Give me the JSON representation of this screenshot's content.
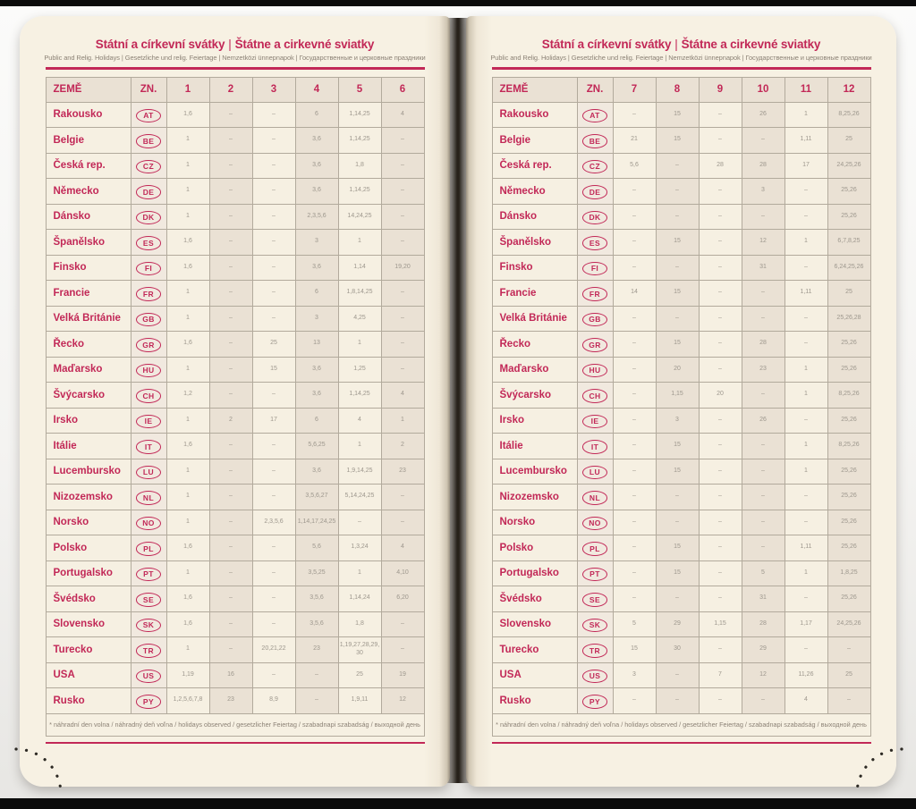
{
  "book": {
    "title_cs": "Státní a církevní svátky",
    "title_divider": "|",
    "title_sk": "Štátne a cirkevné sviatky",
    "subtitle": "Public and Relig. Holidays | Gesetzliche und relig. Feiertage | Nemzetközi ünnepnapok | Государственные и церковные праздники",
    "footnote": "* náhradní den volna / náhradný deň voľna / holidays observed / gesetzlicher Feiertag / szabadnapi szabadság / выходной день",
    "colors": {
      "accent": "#c22857",
      "page_background": "#f7f1e3",
      "shaded_cell": "#eae1d4",
      "value_text": "#9d978d"
    }
  },
  "left_page": {
    "header": [
      "ZEMĚ",
      "ZN.",
      "1",
      "2",
      "3",
      "4",
      "5",
      "6"
    ],
    "rows": [
      {
        "country": "Rakousko",
        "code": "AT",
        "values": [
          "1, 6",
          "–",
          "–",
          "6",
          "1, 14, 25",
          "4"
        ]
      },
      {
        "country": "Belgie",
        "code": "BE",
        "values": [
          "1",
          "–",
          "–",
          "3, 6",
          "1, 14, 25",
          "–"
        ]
      },
      {
        "country": "Česká rep.",
        "code": "CZ",
        "values": [
          "1",
          "–",
          "–",
          "3, 6",
          "1, 8",
          "–"
        ]
      },
      {
        "country": "Německo",
        "code": "DE",
        "values": [
          "1",
          "–",
          "–",
          "3, 6",
          "1, 14, 25",
          "–"
        ]
      },
      {
        "country": "Dánsko",
        "code": "DK",
        "values": [
          "1",
          "–",
          "–",
          "2, 3, 5, 6",
          "14, 24, 25",
          "–"
        ]
      },
      {
        "country": "Španělsko",
        "code": "ES",
        "values": [
          "1, 6",
          "–",
          "–",
          "3",
          "1",
          "–"
        ]
      },
      {
        "country": "Finsko",
        "code": "FI",
        "values": [
          "1, 6",
          "–",
          "–",
          "3, 6",
          "1, 14",
          "19, 20"
        ]
      },
      {
        "country": "Francie",
        "code": "FR",
        "values": [
          "1",
          "–",
          "–",
          "6",
          "1, 8, 14, 25",
          "–"
        ]
      },
      {
        "country": "Velká Británie",
        "code": "GB",
        "values": [
          "1",
          "–",
          "–",
          "3",
          "4, 25",
          "–"
        ]
      },
      {
        "country": "Řecko",
        "code": "GR",
        "values": [
          "1, 6",
          "–",
          "25",
          "13",
          "1",
          "–"
        ]
      },
      {
        "country": "Maďarsko",
        "code": "HU",
        "values": [
          "1",
          "–",
          "15",
          "3, 6",
          "1, 25",
          "–"
        ]
      },
      {
        "country": "Švýcarsko",
        "code": "CH",
        "values": [
          "1, 2",
          "–",
          "–",
          "3, 6",
          "1, 14, 25",
          "4"
        ]
      },
      {
        "country": "Irsko",
        "code": "IE",
        "values": [
          "1",
          "2",
          "17",
          "6",
          "4",
          "1"
        ]
      },
      {
        "country": "Itálie",
        "code": "IT",
        "values": [
          "1, 6",
          "–",
          "–",
          "5, 6, 25",
          "1",
          "2"
        ]
      },
      {
        "country": "Lucembursko",
        "code": "LU",
        "values": [
          "1",
          "–",
          "–",
          "3, 6",
          "1, 9, 14, 25",
          "23"
        ]
      },
      {
        "country": "Nizozemsko",
        "code": "NL",
        "values": [
          "1",
          "–",
          "–",
          "3, 5, 6, 27",
          "5, 14, 24, 25",
          "–"
        ]
      },
      {
        "country": "Norsko",
        "code": "NO",
        "values": [
          "1",
          "–",
          "2, 3, 5, 6",
          "1, 14, 17, 24, 25",
          "–",
          "–"
        ]
      },
      {
        "country": "Polsko",
        "code": "PL",
        "values": [
          "1, 6",
          "–",
          "–",
          "5, 6",
          "1, 3, 24",
          "4"
        ]
      },
      {
        "country": "Portugalsko",
        "code": "PT",
        "values": [
          "1",
          "–",
          "–",
          "3, 5, 25",
          "1",
          "4, 10"
        ]
      },
      {
        "country": "Švédsko",
        "code": "SE",
        "values": [
          "1, 6",
          "–",
          "–",
          "3, 5, 6",
          "1, 14, 24",
          "6, 20"
        ]
      },
      {
        "country": "Slovensko",
        "code": "SK",
        "values": [
          "1, 6",
          "–",
          "–",
          "3, 5, 6",
          "1, 8",
          "–"
        ]
      },
      {
        "country": "Turecko",
        "code": "TR",
        "values": [
          "1",
          "–",
          "20, 21, 22",
          "23",
          "1, 19, 27, 28, 29, 30",
          "–"
        ]
      },
      {
        "country": "USA",
        "code": "US",
        "values": [
          "1, 19",
          "16",
          "–",
          "–",
          "25",
          "19"
        ]
      },
      {
        "country": "Rusko",
        "code": "PY",
        "values": [
          "1, 2, 5, 6, 7, 8",
          "23",
          "8, 9",
          "–",
          "1, 9, 11",
          "12"
        ]
      }
    ]
  },
  "right_page": {
    "header": [
      "ZEMĚ",
      "ZN.",
      "7",
      "8",
      "9",
      "10",
      "11",
      "12"
    ],
    "rows": [
      {
        "country": "Rakousko",
        "code": "AT",
        "values": [
          "–",
          "15",
          "–",
          "26",
          "1",
          "8, 25, 26"
        ]
      },
      {
        "country": "Belgie",
        "code": "BE",
        "values": [
          "21",
          "15",
          "–",
          "–",
          "1, 11",
          "25"
        ]
      },
      {
        "country": "Česká rep.",
        "code": "CZ",
        "values": [
          "5, 6",
          "–",
          "28",
          "28",
          "17",
          "24, 25, 26"
        ]
      },
      {
        "country": "Německo",
        "code": "DE",
        "values": [
          "–",
          "–",
          "–",
          "3",
          "–",
          "25, 26"
        ]
      },
      {
        "country": "Dánsko",
        "code": "DK",
        "values": [
          "–",
          "–",
          "–",
          "–",
          "–",
          "25, 26"
        ]
      },
      {
        "country": "Španělsko",
        "code": "ES",
        "values": [
          "–",
          "15",
          "–",
          "12",
          "1",
          "6, 7, 8, 25"
        ]
      },
      {
        "country": "Finsko",
        "code": "FI",
        "values": [
          "–",
          "–",
          "–",
          "31",
          "–",
          "6, 24, 25, 26"
        ]
      },
      {
        "country": "Francie",
        "code": "FR",
        "values": [
          "14",
          "15",
          "–",
          "–",
          "1, 11",
          "25"
        ]
      },
      {
        "country": "Velká Británie",
        "code": "GB",
        "values": [
          "–",
          "–",
          "–",
          "–",
          "–",
          "25, 26, 28"
        ]
      },
      {
        "country": "Řecko",
        "code": "GR",
        "values": [
          "–",
          "15",
          "–",
          "28",
          "–",
          "25, 26"
        ]
      },
      {
        "country": "Maďarsko",
        "code": "HU",
        "values": [
          "–",
          "20",
          "–",
          "23",
          "1",
          "25, 26"
        ]
      },
      {
        "country": "Švýcarsko",
        "code": "CH",
        "values": [
          "–",
          "1, 15",
          "20",
          "–",
          "1",
          "8, 25, 26"
        ]
      },
      {
        "country": "Irsko",
        "code": "IE",
        "values": [
          "–",
          "3",
          "–",
          "26",
          "–",
          "25, 26"
        ]
      },
      {
        "country": "Itálie",
        "code": "IT",
        "values": [
          "–",
          "15",
          "–",
          "–",
          "1",
          "8, 25, 26"
        ]
      },
      {
        "country": "Lucembursko",
        "code": "LU",
        "values": [
          "–",
          "15",
          "–",
          "–",
          "1",
          "25, 26"
        ]
      },
      {
        "country": "Nizozemsko",
        "code": "NL",
        "values": [
          "–",
          "–",
          "–",
          "–",
          "–",
          "25, 26"
        ]
      },
      {
        "country": "Norsko",
        "code": "NO",
        "values": [
          "–",
          "–",
          "–",
          "–",
          "–",
          "25, 26"
        ]
      },
      {
        "country": "Polsko",
        "code": "PL",
        "values": [
          "–",
          "15",
          "–",
          "–",
          "1, 11",
          "25, 26"
        ]
      },
      {
        "country": "Portugalsko",
        "code": "PT",
        "values": [
          "–",
          "15",
          "–",
          "5",
          "1",
          "1, 8, 25"
        ]
      },
      {
        "country": "Švédsko",
        "code": "SE",
        "values": [
          "–",
          "–",
          "–",
          "31",
          "–",
          "25, 26"
        ]
      },
      {
        "country": "Slovensko",
        "code": "SK",
        "values": [
          "5",
          "29",
          "1, 15",
          "28",
          "1, 17",
          "24, 25, 26"
        ]
      },
      {
        "country": "Turecko",
        "code": "TR",
        "values": [
          "15",
          "30",
          "–",
          "29",
          "–",
          "–"
        ]
      },
      {
        "country": "USA",
        "code": "US",
        "values": [
          "3",
          "–",
          "7",
          "12",
          "11, 26",
          "25"
        ]
      },
      {
        "country": "Rusko",
        "code": "PY",
        "values": [
          "–",
          "–",
          "–",
          "–",
          "4",
          "–"
        ]
      }
    ]
  }
}
